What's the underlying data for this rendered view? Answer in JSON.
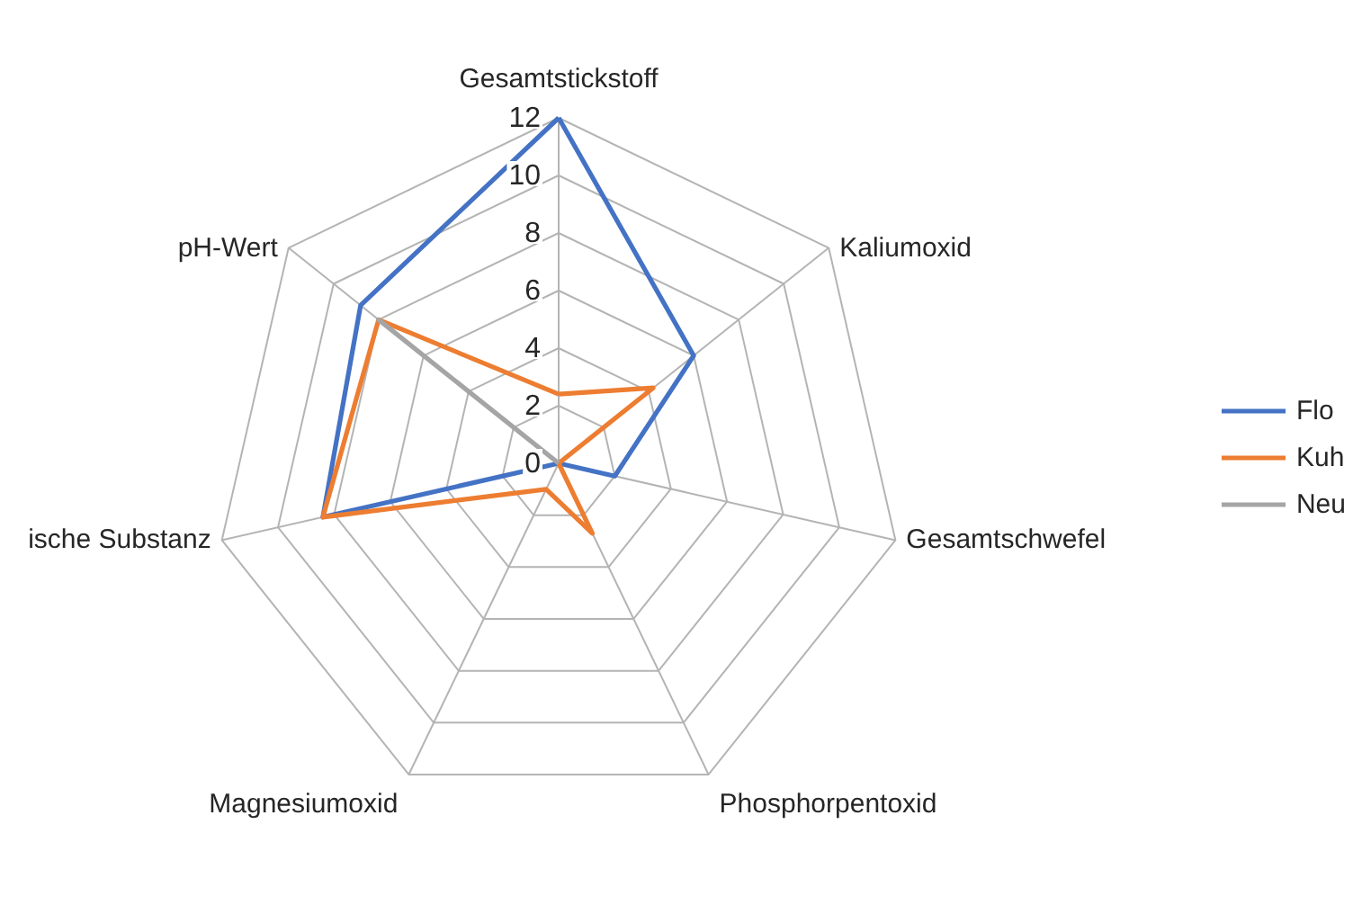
{
  "chart_data": {
    "type": "radar",
    "categories": [
      "Gesamtstickstoff",
      "Kaliumoxid",
      "Gesamtschwefel",
      "Phosphorpentoxid",
      "Magnesiumoxid",
      "ische Substanz",
      "pH-Wert"
    ],
    "ylim": [
      0,
      12
    ],
    "yticks": [
      0,
      2,
      4,
      6,
      8,
      10,
      12
    ],
    "grid": true,
    "legend": "right",
    "series": [
      {
        "name": "Flo",
        "color": "#4472c4",
        "values": [
          12,
          6,
          2,
          0,
          0,
          8.4,
          8.8
        ]
      },
      {
        "name": "Kuh",
        "color": "#ed7d31",
        "values": [
          2.4,
          4.2,
          0,
          2.7,
          1,
          8.4,
          8
        ]
      },
      {
        "name": "Neu",
        "color": "#a5a5a5",
        "values": [
          0,
          0,
          0,
          0,
          0,
          0,
          8
        ]
      }
    ]
  }
}
